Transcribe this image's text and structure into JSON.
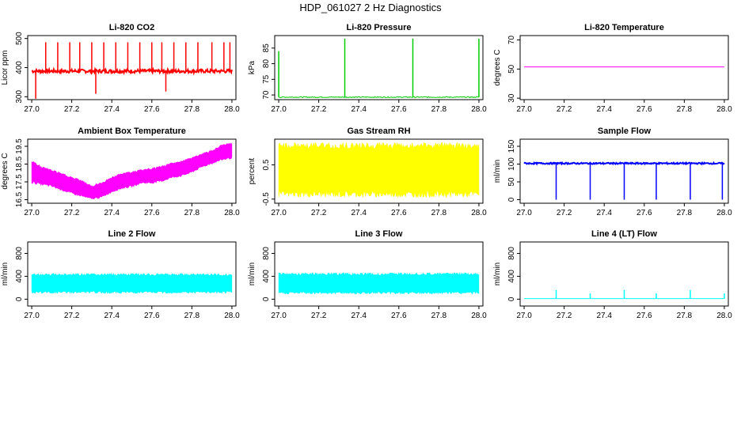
{
  "title": "HDP_061027  2 Hz Diagnostics",
  "chart_data": [
    {
      "type": "line",
      "title": "Li-820 CO2",
      "ylabel": "Licor ppm",
      "color": "#ff0000",
      "xlim": [
        26.98,
        28.02
      ],
      "ylim": [
        290,
        510
      ],
      "xticks": [
        27.0,
        27.2,
        27.4,
        27.6,
        27.8,
        28.0
      ],
      "yticks": [
        300,
        400,
        500
      ],
      "baseline": 388,
      "noise": 6,
      "spikes": [
        [
          27.02,
          293
        ],
        [
          27.07,
          487
        ],
        [
          27.13,
          487
        ],
        [
          27.19,
          487
        ],
        [
          27.24,
          487
        ],
        [
          27.3,
          487
        ],
        [
          27.32,
          310
        ],
        [
          27.36,
          487
        ],
        [
          27.42,
          487
        ],
        [
          27.48,
          487
        ],
        [
          27.54,
          487
        ],
        [
          27.6,
          487
        ],
        [
          27.65,
          487
        ],
        [
          27.67,
          318
        ],
        [
          27.71,
          487
        ],
        [
          27.77,
          487
        ],
        [
          27.83,
          487
        ],
        [
          27.9,
          487
        ],
        [
          27.96,
          487
        ],
        [
          27.99,
          487
        ]
      ]
    },
    {
      "type": "line",
      "title": "Li-820 Pressure",
      "ylabel": "kPa",
      "color": "#00cc00",
      "xlim": [
        26.98,
        28.02
      ],
      "ylim": [
        68.5,
        89
      ],
      "xticks": [
        27.0,
        27.2,
        27.4,
        27.6,
        27.8,
        28.0
      ],
      "yticks": [
        70,
        75,
        80,
        85
      ],
      "baseline": 69.3,
      "noise": 0.15,
      "spikes": [
        [
          27.0,
          84
        ],
        [
          27.33,
          88
        ],
        [
          27.67,
          88
        ],
        [
          28.0,
          88
        ]
      ]
    },
    {
      "type": "line",
      "title": "Li-820 Temperature",
      "ylabel": "degrees C",
      "color": "#ff00ff",
      "xlim": [
        26.98,
        28.02
      ],
      "ylim": [
        29,
        73
      ],
      "xticks": [
        27.0,
        27.2,
        27.4,
        27.6,
        27.8,
        28.0
      ],
      "yticks": [
        30,
        50,
        70
      ],
      "baseline": 51.5,
      "noise": 0,
      "spikes": []
    },
    {
      "type": "area",
      "title": "Ambient Box Temperature",
      "ylabel": "degrees C",
      "color": "#ff00ff",
      "xlim": [
        26.98,
        28.02
      ],
      "ylim": [
        16.3,
        19.9
      ],
      "xticks": [
        27.0,
        27.2,
        27.4,
        27.6,
        27.8,
        28.0
      ],
      "yticks": [
        16.5,
        17.5,
        18.5,
        19.5
      ],
      "x": [
        27.0,
        27.05,
        27.1,
        27.15,
        27.2,
        27.25,
        27.3,
        27.35,
        27.4,
        27.45,
        27.5,
        27.55,
        27.6,
        27.65,
        27.7,
        27.75,
        27.8,
        27.85,
        27.9,
        27.95,
        28.0
      ],
      "low": [
        17.4,
        17.3,
        17.2,
        17.0,
        16.8,
        16.65,
        16.5,
        16.6,
        16.9,
        17.1,
        17.2,
        17.4,
        17.4,
        17.5,
        17.7,
        17.8,
        18.0,
        18.3,
        18.5,
        18.7,
        18.8
      ],
      "high": [
        18.7,
        18.4,
        18.2,
        18.0,
        17.8,
        17.6,
        17.3,
        17.5,
        17.8,
        18.0,
        18.1,
        18.2,
        18.3,
        18.4,
        18.6,
        18.7,
        18.9,
        19.1,
        19.3,
        19.6,
        19.7
      ]
    },
    {
      "type": "area",
      "title": "Gas Stream RH",
      "ylabel": "percent",
      "color": "#ffff00",
      "xlim": [
        26.98,
        28.02
      ],
      "ylim": [
        -0.62,
        1.25
      ],
      "xticks": [
        27.0,
        27.2,
        27.4,
        27.6,
        27.8,
        28.0
      ],
      "yticks": [
        -0.5,
        0.5
      ],
      "x": [
        27.0,
        28.0
      ],
      "low": [
        -0.45,
        -0.45
      ],
      "high": [
        1.15,
        1.15
      ]
    },
    {
      "type": "line",
      "title": "Sample Flow",
      "ylabel": "ml/min",
      "color": "#0000ff",
      "xlim": [
        26.98,
        28.02
      ],
      "ylim": [
        -10,
        170
      ],
      "xticks": [
        27.0,
        27.2,
        27.4,
        27.6,
        27.8,
        28.0
      ],
      "yticks": [
        0,
        50,
        100,
        150
      ],
      "baseline": 102,
      "noise": 2,
      "spikes": [
        [
          27.16,
          0
        ],
        [
          27.33,
          0
        ],
        [
          27.5,
          0
        ],
        [
          27.66,
          0
        ],
        [
          27.83,
          0
        ],
        [
          27.99,
          0
        ]
      ]
    },
    {
      "type": "area",
      "title": "Line 2 Flow",
      "ylabel": "ml/min",
      "color": "#00ffff",
      "xlim": [
        26.98,
        28.02
      ],
      "ylim": [
        -120,
        1000
      ],
      "xticks": [
        27.0,
        27.2,
        27.4,
        27.6,
        27.8,
        28.0
      ],
      "yticks": [
        0,
        400,
        800
      ],
      "x": [
        27.0,
        28.0
      ],
      "low": [
        100,
        100
      ],
      "high": [
        450,
        450
      ]
    },
    {
      "type": "area",
      "title": "Line 3 Flow",
      "ylabel": "ml/min",
      "color": "#00ffff",
      "xlim": [
        26.98,
        28.02
      ],
      "ylim": [
        -120,
        1000
      ],
      "xticks": [
        27.0,
        27.2,
        27.4,
        27.6,
        27.8,
        28.0
      ],
      "yticks": [
        0,
        400,
        800
      ],
      "x": [
        27.0,
        28.0
      ],
      "low": [
        90,
        90
      ],
      "high": [
        460,
        460
      ]
    },
    {
      "type": "line",
      "title": "Line 4 (LT) Flow",
      "ylabel": "ml/min",
      "color": "#00ffff",
      "xlim": [
        26.98,
        28.02
      ],
      "ylim": [
        -120,
        1000
      ],
      "xticks": [
        27.0,
        27.2,
        27.4,
        27.6,
        27.8,
        28.0
      ],
      "yticks": [
        0,
        400,
        800
      ],
      "baseline": 10,
      "noise": 0,
      "spikes": [
        [
          27.16,
          160
        ],
        [
          27.33,
          100
        ],
        [
          27.5,
          160
        ],
        [
          27.66,
          100
        ],
        [
          27.83,
          160
        ],
        [
          28.0,
          100
        ]
      ]
    }
  ]
}
